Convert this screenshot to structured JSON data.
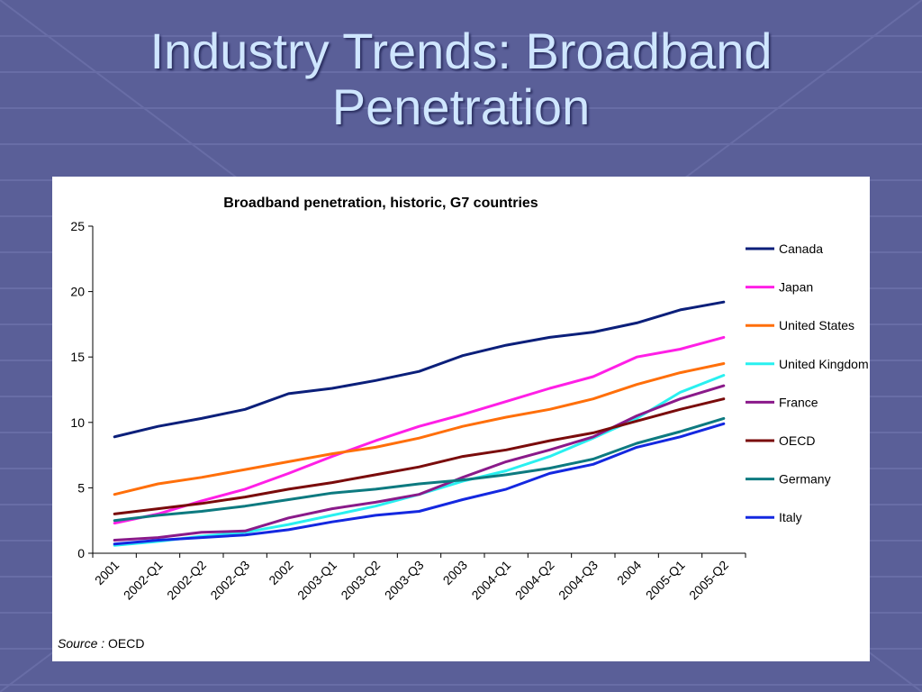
{
  "slide": {
    "title_line1": "Industry Trends:  Broadband",
    "title_line2": "Penetration",
    "background_color": "#5a5f98",
    "title_color": "#cfe6ff"
  },
  "source": {
    "label": "Source :",
    "value": "OECD"
  },
  "chart_data": {
    "type": "line",
    "title": "Broadband penetration, historic, G7 countries",
    "xlabel": "",
    "ylabel": "",
    "ylim": [
      0,
      25
    ],
    "yticks": [
      0,
      5,
      10,
      15,
      20,
      25
    ],
    "grid": false,
    "legend_position": "right",
    "categories": [
      "2001",
      "2002-Q1",
      "2002-Q2",
      "2002-Q3",
      "2002",
      "2003-Q1",
      "2003-Q2",
      "2003-Q3",
      "2003",
      "2004-Q1",
      "2004-Q2",
      "2004-Q3",
      "2004",
      "2005-Q1",
      "2005-Q2"
    ],
    "series": [
      {
        "name": "Canada",
        "color": "#0b1f7a",
        "values": [
          8.9,
          9.7,
          10.3,
          11.0,
          12.2,
          12.6,
          13.2,
          13.9,
          15.1,
          15.9,
          16.5,
          16.9,
          17.6,
          18.6,
          19.2
        ]
      },
      {
        "name": "Japan",
        "color": "#ff1fe6",
        "values": [
          2.3,
          3.0,
          4.0,
          4.9,
          6.1,
          7.4,
          8.6,
          9.7,
          10.6,
          11.6,
          12.6,
          13.5,
          15.0,
          15.6,
          16.5
        ]
      },
      {
        "name": "United States",
        "color": "#ff6f0a",
        "values": [
          4.5,
          5.3,
          5.8,
          6.4,
          7.0,
          7.6,
          8.1,
          8.8,
          9.7,
          10.4,
          11.0,
          11.8,
          12.9,
          13.8,
          14.5
        ]
      },
      {
        "name": "United Kingdom",
        "color": "#29f0f0",
        "values": [
          0.6,
          0.9,
          1.3,
          1.6,
          2.2,
          2.9,
          3.6,
          4.5,
          5.5,
          6.3,
          7.4,
          8.8,
          10.3,
          12.3,
          13.6
        ]
      },
      {
        "name": "France",
        "color": "#8a1a8a",
        "values": [
          1.0,
          1.2,
          1.6,
          1.7,
          2.7,
          3.4,
          3.9,
          4.5,
          5.8,
          7.0,
          7.9,
          8.9,
          10.5,
          11.8,
          12.8
        ]
      },
      {
        "name": "OECD",
        "color": "#7a0b0b",
        "values": [
          3.0,
          3.4,
          3.8,
          4.3,
          4.9,
          5.4,
          6.0,
          6.6,
          7.4,
          7.9,
          8.6,
          9.2,
          10.1,
          11.0,
          11.8
        ]
      },
      {
        "name": "Germany",
        "color": "#0d7a80",
        "values": [
          2.5,
          2.9,
          3.2,
          3.6,
          4.1,
          4.6,
          4.9,
          5.3,
          5.6,
          6.0,
          6.5,
          7.2,
          8.4,
          9.3,
          10.3
        ]
      },
      {
        "name": "Italy",
        "color": "#1428e0",
        "values": [
          0.7,
          1.0,
          1.2,
          1.4,
          1.8,
          2.4,
          2.9,
          3.2,
          4.1,
          4.9,
          6.1,
          6.8,
          8.1,
          8.9,
          9.9
        ]
      }
    ]
  }
}
